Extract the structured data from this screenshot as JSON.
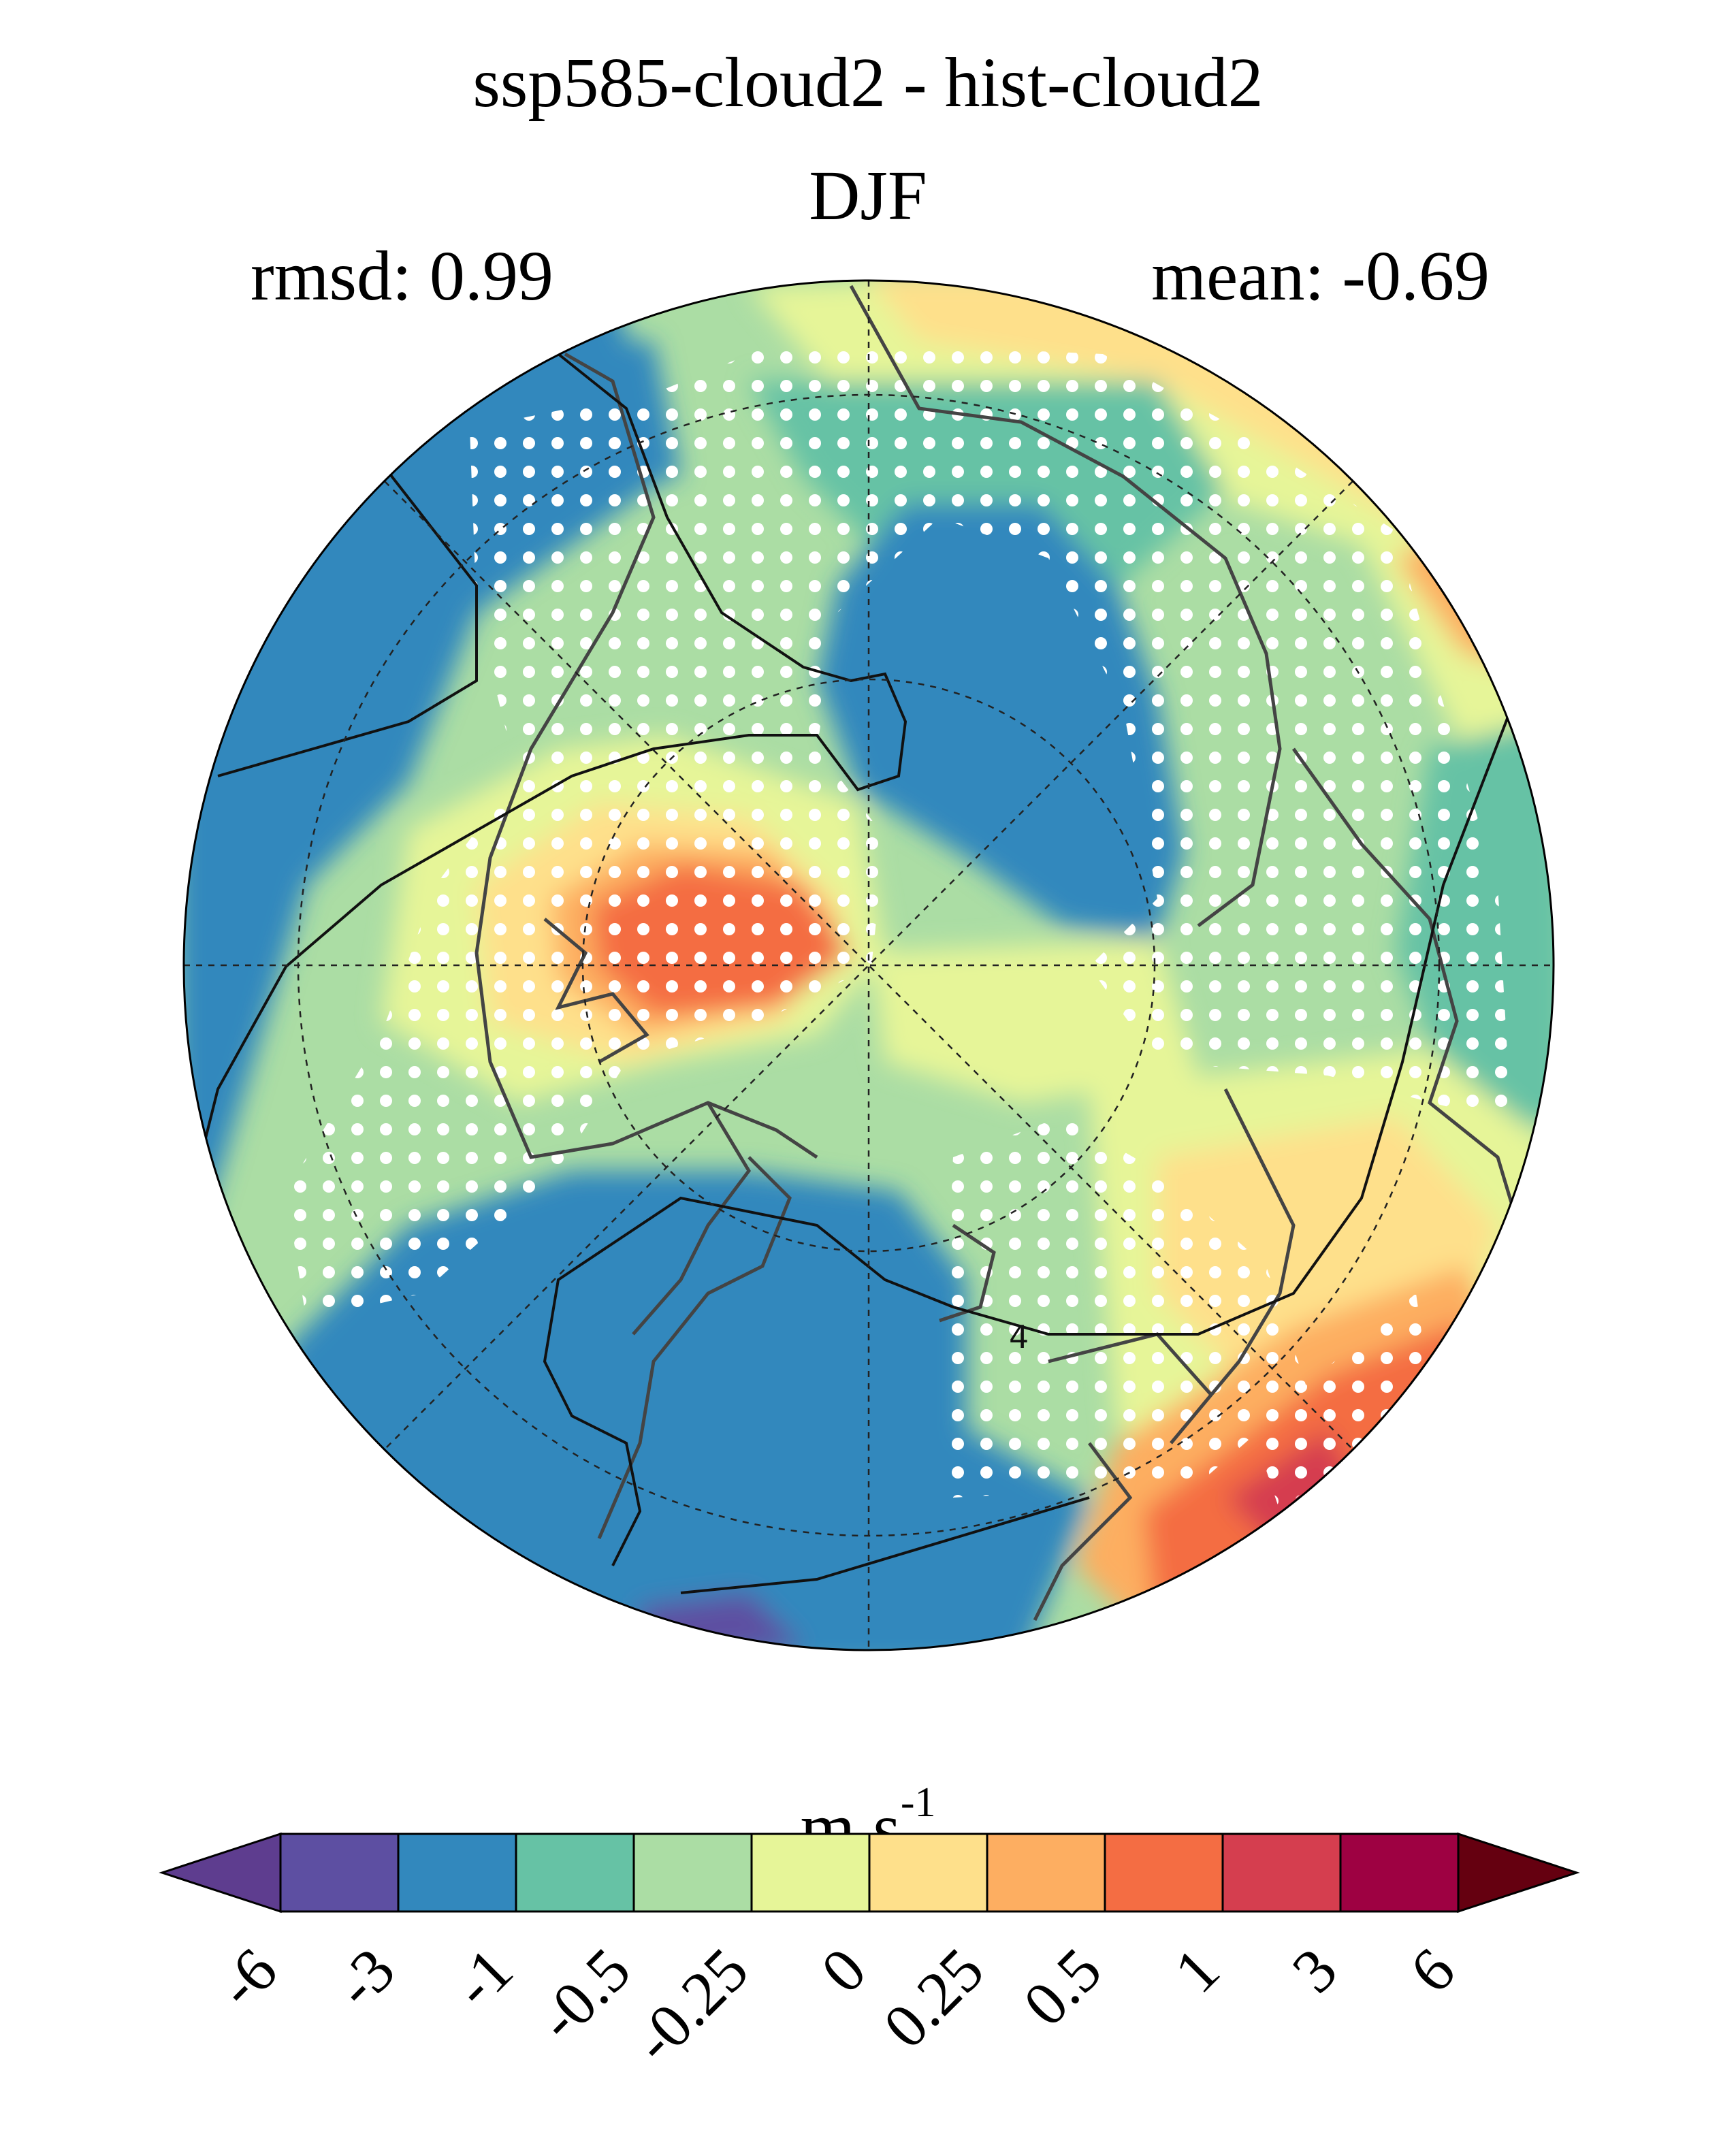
{
  "figure": {
    "title": "ssp585-cloud2 - hist-cloud2",
    "season": "DJF",
    "rmsd_label": "rmsd:",
    "rmsd_value": "0.99",
    "mean_label": "mean:",
    "mean_value": "-0.69",
    "contour_label": "4"
  },
  "colorbar": {
    "units_base": "m s",
    "units_exp": "-1",
    "ticks": [
      "-6",
      "-3",
      "-1",
      "-0.5",
      "-0.25",
      "0",
      "0.25",
      "0.5",
      "1",
      "3",
      "6"
    ],
    "colors": [
      "#5e3d8f",
      "#5d4fa2",
      "#3288bd",
      "#66c2a5",
      "#abdda4",
      "#e6f598",
      "#fee08b",
      "#fdae61",
      "#f46d43",
      "#d53e4f",
      "#9e0142",
      "#650010"
    ]
  },
  "chart_data": {
    "type": "heatmap",
    "projection": "north-polar-stereographic",
    "title": "ssp585-cloud2 - hist-cloud2",
    "subtitle": "DJF",
    "variable_units": "m s-1",
    "rmsd": 0.99,
    "mean": -0.69,
    "color_levels": [
      -6,
      -3,
      -1,
      -0.5,
      -0.25,
      0,
      0.25,
      0.5,
      1,
      3,
      6
    ],
    "extend": "both",
    "stippling": "significant regions marked with white dots",
    "contour_lines": [
      4
    ]
  }
}
